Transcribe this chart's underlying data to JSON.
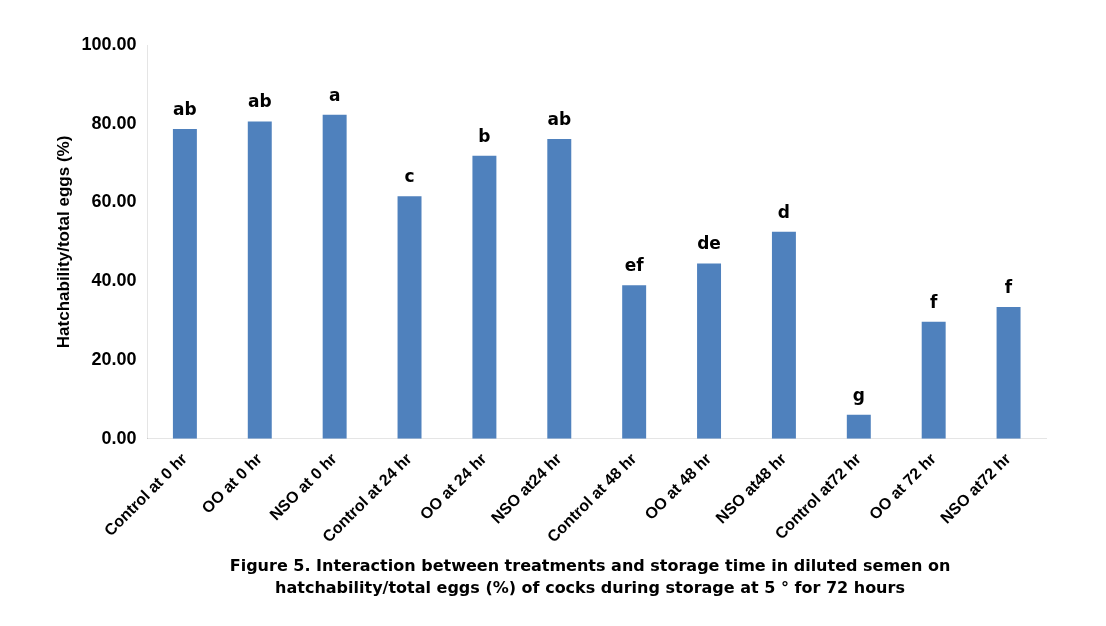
{
  "chart_data": {
    "type": "bar",
    "title": "Figure 5. Interaction between treatments and storage time in diluted semen on hatchability/total eggs (%) of cocks during storage at 5 ° for 72 hours",
    "ylabel": "Hatchability/total eggs (%)",
    "categories": [
      "Control at 0 hr",
      "OO at 0 hr",
      "NSO at 0 hr",
      "Control at 24 hr",
      "OO at 24 hr",
      "NSO at24 hr",
      "Control at 48 hr",
      "OO at 48 hr",
      "NSO at48 hr",
      "Control at72 hr",
      "OO at 72 hr",
      "NSO at72 hr"
    ],
    "values": [
      78.7,
      80.6,
      82.3,
      61.6,
      71.9,
      76.1,
      39.0,
      44.5,
      52.6,
      6.1,
      29.7,
      33.5
    ],
    "color": "#4f81bd",
    "ylim": [
      0,
      100
    ],
    "yticks": [
      {
        "value": 0,
        "label": "0.00"
      },
      {
        "value": 20,
        "label": "20.00"
      },
      {
        "value": 40,
        "label": "40.00"
      },
      {
        "value": 60,
        "label": "60.00"
      },
      {
        "value": 80,
        "label": "80.00"
      },
      {
        "value": 100,
        "label": "100.00"
      }
    ],
    "annotations": [
      {
        "text": "ab",
        "x": "Control at 0 hr",
        "y": 78.7
      },
      {
        "text": "ab",
        "x": "OO at 0 hr",
        "y": 80.6
      },
      {
        "text": "a",
        "x": "NSO at 0 hr",
        "y": 82.3
      },
      {
        "text": "c",
        "x": "Control at 24 hr",
        "y": 61.6
      },
      {
        "text": "b",
        "x": "OO at 24 hr",
        "y": 71.9
      },
      {
        "text": "ab",
        "x": "NSO at24 hr",
        "y": 76.1
      },
      {
        "text": "ef",
        "x": "Control at 48 hr",
        "y": 39.0
      },
      {
        "text": "de",
        "x": "OO at 48 hr",
        "y": 44.5
      },
      {
        "text": "d",
        "x": "NSO at48 hr",
        "y": 52.6
      },
      {
        "text": "g",
        "x": "Control at72 hr",
        "y": 6.1
      },
      {
        "text": "f",
        "x": "OO at 72 hr",
        "y": 29.7
      },
      {
        "text": "f",
        "x": "NSO at72 hr",
        "y": 33.5
      }
    ],
    "grid": false
  }
}
